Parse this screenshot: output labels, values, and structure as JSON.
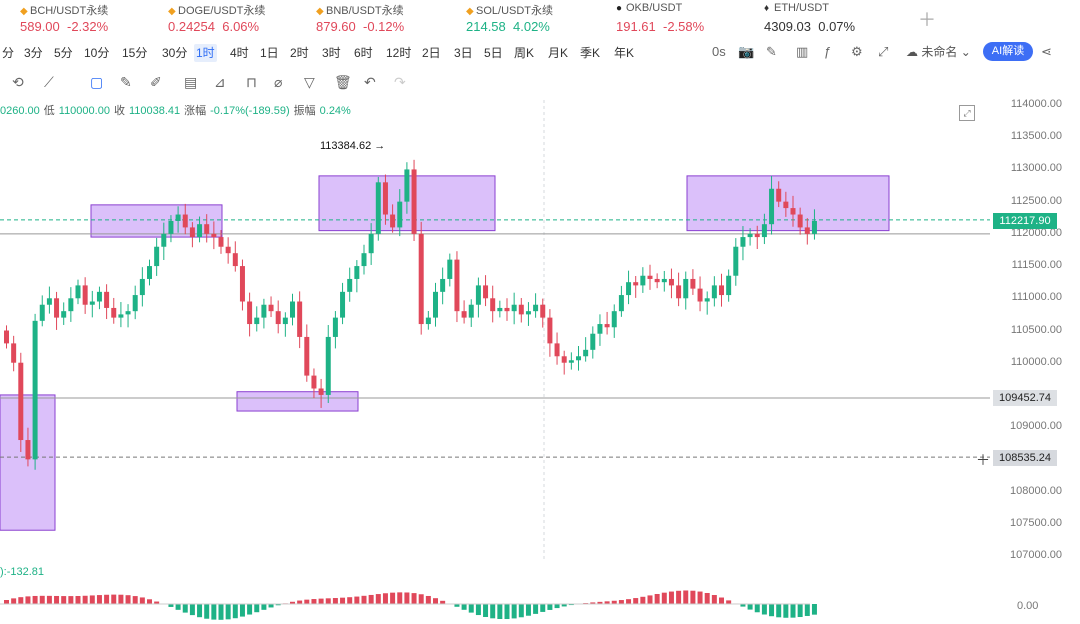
{
  "tickers": [
    {
      "symbol": "BCH/USDT永续",
      "price": "589.00",
      "change": "-2.32%",
      "dir": "down"
    },
    {
      "symbol": "DOGE/USDT永续",
      "price": "0.24254",
      "change": "6.06%",
      "dir": "down"
    },
    {
      "symbol": "BNB/USDT永续",
      "price": "879.60",
      "change": "-0.12%",
      "dir": "down"
    },
    {
      "symbol": "SOL/USDT永续",
      "price": "214.58",
      "change": "4.02%",
      "dir": "up"
    },
    {
      "symbol": "OKB/USDT",
      "price": "191.61",
      "change": "-2.58%",
      "dir": "down"
    },
    {
      "symbol": "ETH/USDT",
      "price": "4309.03",
      "change": "0.07%",
      "dir": "neutral"
    }
  ],
  "timeframes": [
    "分",
    "3分",
    "5分",
    "10分",
    "15分",
    "30分",
    "1时",
    "4时",
    "1日",
    "2时",
    "3时",
    "6时",
    "12时",
    "2日",
    "3日",
    "5日",
    "周K",
    "月K",
    "季K",
    "年K"
  ],
  "active_timeframe": "1时",
  "toolbar_right": {
    "interval": "0s",
    "unnamed": "未命名",
    "ai_label": "AI解读"
  },
  "ohlc": {
    "open": "0260.00",
    "low_label": "低",
    "low": "110000.00",
    "close_label": "收",
    "close": "110038.41",
    "change_label": "涨幅",
    "change": "-0.17%(-189.59)",
    "amp_label": "振幅",
    "amp": "0.24%"
  },
  "chart_data": {
    "type": "candlestick",
    "ylim": [
      106500,
      114000
    ],
    "y_ticks": [
      114000,
      113500,
      113000,
      112500,
      112000,
      111500,
      111000,
      110500,
      110000,
      109000,
      108000,
      107500,
      107000
    ],
    "y_tick_labels": [
      "114000.00",
      "113500.00",
      "113000.00",
      "112500.00",
      "112000.00",
      "111500.00",
      "111000.00",
      "110500.00",
      "110000.00",
      "109000.00",
      "108000.00",
      "107500.00",
      "107000.00"
    ],
    "closes": [
      110300,
      110000,
      108800,
      108500,
      110650,
      110900,
      111000,
      110700,
      110800,
      111000,
      111200,
      110900,
      110950,
      111100,
      110850,
      110700,
      110750,
      110800,
      111050,
      111300,
      111500,
      111800,
      112000,
      112200,
      112300,
      112100,
      111950,
      112150,
      112000,
      111950,
      111800,
      111700,
      111500,
      110950,
      110600,
      110700,
      110900,
      110800,
      110600,
      110700,
      110950,
      110400,
      109800,
      109600,
      109500,
      110400,
      110700,
      111100,
      111300,
      111500,
      111700,
      112000,
      112800,
      112300,
      112100,
      112500,
      113000,
      112000,
      110600,
      110700,
      111100,
      111300,
      111600,
      110800,
      110700,
      110900,
      111200,
      111000,
      110800,
      110850,
      110800,
      110900,
      110750,
      110800,
      110900,
      110700,
      110300,
      110100,
      110000,
      110038,
      110100,
      110200,
      110450,
      110600,
      110550,
      110800,
      111050,
      111250,
      111200,
      111350,
      111300,
      111250,
      111300,
      111200,
      111000,
      111300,
      111150,
      110950,
      111000,
      111200,
      111050,
      111350,
      111800,
      111950,
      112000,
      111950,
      112150,
      112700,
      112500,
      112400,
      112300,
      112100,
      112000,
      112200
    ],
    "highs_lows_note": "",
    "current_price": "112217.90",
    "support_price": "109452.74",
    "crosshair_price": "108535.24",
    "marked_high": "113384.62",
    "zones": [
      {
        "price_top": 109500,
        "price_bottom": 107400,
        "side": "left"
      },
      {
        "price_top": 112450,
        "price_bottom": 111950
      },
      {
        "price_top": 112900,
        "price_bottom": 112050
      },
      {
        "price_top": 109550,
        "price_bottom": 109250
      },
      {
        "price_top": 112900,
        "price_bottom": 112050
      }
    ],
    "macd_label": "-132.81",
    "macd_zero": "0.00",
    "grid": false
  }
}
